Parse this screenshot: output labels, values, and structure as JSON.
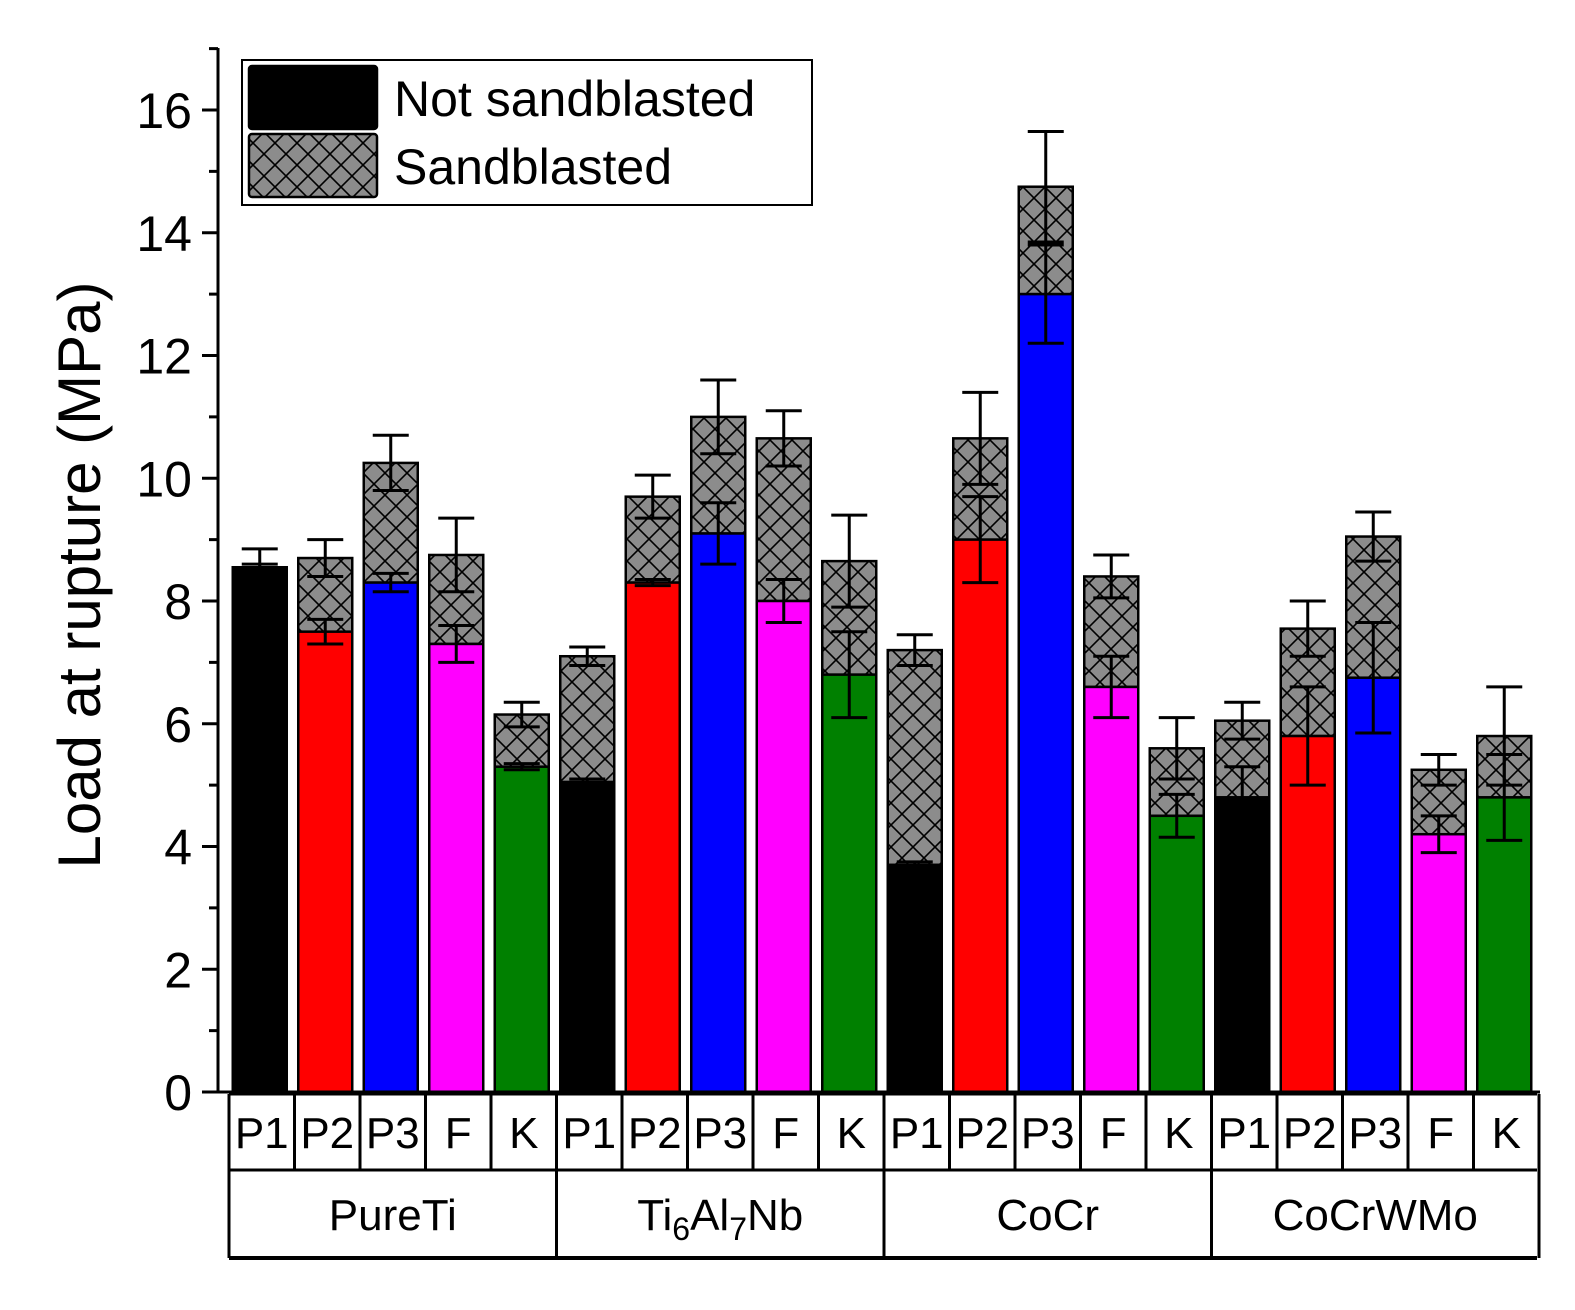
{
  "chart_data": {
    "type": "bar",
    "mode": "overlapped",
    "title": "",
    "xlabel": "",
    "ylabel": "Load at rupture (MPa)",
    "ylim": [
      0,
      17
    ],
    "yticks": [
      0,
      2,
      4,
      6,
      8,
      10,
      12,
      14,
      16
    ],
    "legend_position": "top-left",
    "legend": [
      {
        "name": "Not sandblasted",
        "style": "solid",
        "swatch_color": "#000000"
      },
      {
        "name": "Sandblasted",
        "style": "crosshatch",
        "swatch_color": "#8c8c8c"
      }
    ],
    "process_colors": {
      "P1": "#000000",
      "P2": "#ff0000",
      "P3": "#0000ff",
      "F": "#ff00ff",
      "K": "#008000"
    },
    "groups": [
      {
        "name": "PureTi",
        "label": {
          "base": "PureTi",
          "parts": []
        },
        "bars": [
          {
            "category": "P1",
            "not_sandblasted": 8.55,
            "not_sandblasted_err": 0.05,
            "sandblasted": 8.55,
            "sandblasted_err": 0.3
          },
          {
            "category": "P2",
            "not_sandblasted": 7.5,
            "not_sandblasted_err": 0.2,
            "sandblasted": 8.7,
            "sandblasted_err": 0.3
          },
          {
            "category": "P3",
            "not_sandblasted": 8.3,
            "not_sandblasted_err": 0.15,
            "sandblasted": 10.25,
            "sandblasted_err": 0.45
          },
          {
            "category": "F",
            "not_sandblasted": 7.3,
            "not_sandblasted_err": 0.3,
            "sandblasted": 8.75,
            "sandblasted_err": 0.6
          },
          {
            "category": "K",
            "not_sandblasted": 5.3,
            "not_sandblasted_err": 0.05,
            "sandblasted": 6.15,
            "sandblasted_err": 0.2
          }
        ]
      },
      {
        "name": "Ti6Al7Nb",
        "label": {
          "base": "",
          "parts": [
            {
              "text": "Ti",
              "sub": false
            },
            {
              "text": "6",
              "sub": true
            },
            {
              "text": "Al",
              "sub": false
            },
            {
              "text": "7",
              "sub": true
            },
            {
              "text": "Nb",
              "sub": false
            }
          ]
        },
        "bars": [
          {
            "category": "P1",
            "not_sandblasted": 5.05,
            "not_sandblasted_err": 0.05,
            "sandblasted": 7.1,
            "sandblasted_err": 0.15
          },
          {
            "category": "P2",
            "not_sandblasted": 8.3,
            "not_sandblasted_err": 0.05,
            "sandblasted": 9.7,
            "sandblasted_err": 0.35
          },
          {
            "category": "P3",
            "not_sandblasted": 9.1,
            "not_sandblasted_err": 0.5,
            "sandblasted": 11.0,
            "sandblasted_err": 0.6
          },
          {
            "category": "F",
            "not_sandblasted": 8.0,
            "not_sandblasted_err": 0.35,
            "sandblasted": 10.65,
            "sandblasted_err": 0.45
          },
          {
            "category": "K",
            "not_sandblasted": 6.8,
            "not_sandblasted_err": 0.7,
            "sandblasted": 8.65,
            "sandblasted_err": 0.75
          }
        ]
      },
      {
        "name": "CoCr",
        "label": {
          "base": "CoCr",
          "parts": []
        },
        "bars": [
          {
            "category": "P1",
            "not_sandblasted": 3.7,
            "not_sandblasted_err": 0.05,
            "sandblasted": 7.2,
            "sandblasted_err": 0.25
          },
          {
            "category": "P2",
            "not_sandblasted": 9.0,
            "not_sandblasted_err": 0.7,
            "sandblasted": 10.65,
            "sandblasted_err": 0.75
          },
          {
            "category": "P3",
            "not_sandblasted": 13.0,
            "not_sandblasted_err": 0.8,
            "sandblasted": 14.75,
            "sandblasted_err": 0.9
          },
          {
            "category": "F",
            "not_sandblasted": 6.6,
            "not_sandblasted_err": 0.5,
            "sandblasted": 8.4,
            "sandblasted_err": 0.35
          },
          {
            "category": "K",
            "not_sandblasted": 4.5,
            "not_sandblasted_err": 0.35,
            "sandblasted": 5.6,
            "sandblasted_err": 0.5
          }
        ]
      },
      {
        "name": "CoCrWMo",
        "label": {
          "base": "CoCrWMo",
          "parts": []
        },
        "bars": [
          {
            "category": "P1",
            "not_sandblasted": 4.8,
            "not_sandblasted_err": 0.5,
            "sandblasted": 6.05,
            "sandblasted_err": 0.3
          },
          {
            "category": "P2",
            "not_sandblasted": 5.8,
            "not_sandblasted_err": 0.8,
            "sandblasted": 7.55,
            "sandblasted_err": 0.45
          },
          {
            "category": "P3",
            "not_sandblasted": 6.75,
            "not_sandblasted_err": 0.9,
            "sandblasted": 9.05,
            "sandblasted_err": 0.4
          },
          {
            "category": "F",
            "not_sandblasted": 4.2,
            "not_sandblasted_err": 0.3,
            "sandblasted": 5.25,
            "sandblasted_err": 0.25
          },
          {
            "category": "K",
            "not_sandblasted": 4.8,
            "not_sandblasted_err": 0.7,
            "sandblasted": 5.8,
            "sandblasted_err": 0.8
          }
        ]
      }
    ]
  }
}
